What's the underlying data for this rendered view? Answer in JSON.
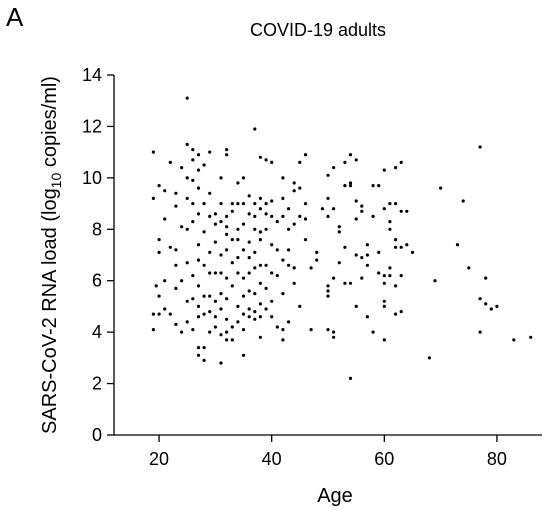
{
  "panel_label": "A",
  "chart_data": {
    "type": "scatter",
    "title": "COVID-19 adults",
    "xlabel": "Age",
    "ylabel_main": "SARS-CoV-2 RNA load (log",
    "ylabel_sub": "10",
    "ylabel_tail": " copies/ml)",
    "xlim": [
      12,
      88
    ],
    "ylim": [
      0,
      14
    ],
    "xticks": [
      20,
      40,
      60,
      80
    ],
    "yticks": [
      0,
      2,
      4,
      6,
      8,
      10,
      12,
      14
    ],
    "grid": false,
    "legend": "none",
    "marker_color": "#000000",
    "points": [
      [
        19,
        11.0
      ],
      [
        19,
        9.2
      ],
      [
        19,
        4.1
      ],
      [
        19,
        4.7
      ],
      [
        19.5,
        5.8
      ],
      [
        20,
        9.7
      ],
      [
        20,
        7.6
      ],
      [
        20,
        7.1
      ],
      [
        20,
        5.4
      ],
      [
        20,
        4.7
      ],
      [
        21,
        9.5
      ],
      [
        21,
        8.4
      ],
      [
        21,
        6.0
      ],
      [
        21,
        4.9
      ],
      [
        22,
        10.6
      ],
      [
        22,
        7.3
      ],
      [
        22,
        4.7
      ],
      [
        23,
        9.4
      ],
      [
        23,
        8.9
      ],
      [
        23,
        7.2
      ],
      [
        23,
        6.6
      ],
      [
        23,
        5.7
      ],
      [
        23,
        4.3
      ],
      [
        24,
        10.4
      ],
      [
        24,
        8.1
      ],
      [
        24,
        6.0
      ],
      [
        24,
        4.0
      ],
      [
        25,
        13.1
      ],
      [
        25,
        11.3
      ],
      [
        25,
        10.0
      ],
      [
        25,
        9.2
      ],
      [
        25,
        8.0
      ],
      [
        25,
        6.7
      ],
      [
        25,
        5.2
      ],
      [
        25,
        4.4
      ],
      [
        26,
        11.1
      ],
      [
        26,
        10.7
      ],
      [
        26,
        9.9
      ],
      [
        26,
        9.0
      ],
      [
        26,
        8.3
      ],
      [
        26,
        6.2
      ],
      [
        26,
        5.3
      ],
      [
        26,
        4.1
      ],
      [
        27,
        10.9
      ],
      [
        27,
        10.3
      ],
      [
        27,
        9.6
      ],
      [
        27,
        8.6
      ],
      [
        27,
        7.4
      ],
      [
        27,
        6.8
      ],
      [
        27,
        5.8
      ],
      [
        27,
        5.0
      ],
      [
        27,
        4.6
      ],
      [
        27,
        3.4
      ],
      [
        27,
        3.1
      ],
      [
        28,
        10.5
      ],
      [
        28,
        9.0
      ],
      [
        28,
        7.9
      ],
      [
        28,
        6.6
      ],
      [
        28,
        5.4
      ],
      [
        28,
        4.7
      ],
      [
        28,
        3.4
      ],
      [
        28,
        2.9
      ],
      [
        29,
        11.0
      ],
      [
        29,
        9.4
      ],
      [
        29,
        8.5
      ],
      [
        29,
        7.1
      ],
      [
        29,
        6.3
      ],
      [
        29,
        5.4
      ],
      [
        29,
        4.8
      ],
      [
        29,
        4.0
      ],
      [
        30,
        8.6
      ],
      [
        30,
        8.2
      ],
      [
        30,
        7.5
      ],
      [
        30,
        6.3
      ],
      [
        30,
        5.2
      ],
      [
        30,
        4.6
      ],
      [
        30,
        4.2
      ],
      [
        31,
        10.0
      ],
      [
        31,
        9.0
      ],
      [
        31,
        8.3
      ],
      [
        31,
        7.0
      ],
      [
        31,
        6.3
      ],
      [
        31,
        5.5
      ],
      [
        31,
        4.9
      ],
      [
        31,
        3.9
      ],
      [
        31,
        2.8
      ],
      [
        32,
        11.1
      ],
      [
        32,
        10.9
      ],
      [
        32,
        8.5
      ],
      [
        32,
        8.1
      ],
      [
        32,
        7.8
      ],
      [
        32,
        7.2
      ],
      [
        32,
        6.1
      ],
      [
        32,
        5.3
      ],
      [
        32,
        4.5
      ],
      [
        32,
        4.0
      ],
      [
        32,
        3.7
      ],
      [
        33,
        9.0
      ],
      [
        33,
        8.7
      ],
      [
        33,
        7.6
      ],
      [
        33,
        6.7
      ],
      [
        33,
        5.8
      ],
      [
        33,
        4.2
      ],
      [
        33,
        3.7
      ],
      [
        34,
        9.8
      ],
      [
        34,
        9.0
      ],
      [
        34,
        8.0
      ],
      [
        34,
        7.6
      ],
      [
        34,
        6.9
      ],
      [
        34,
        6.3
      ],
      [
        34,
        5.0
      ],
      [
        34,
        4.4
      ],
      [
        35,
        10.0
      ],
      [
        35,
        9.0
      ],
      [
        35,
        8.2
      ],
      [
        35,
        7.2
      ],
      [
        35,
        6.1
      ],
      [
        35,
        5.4
      ],
      [
        35,
        4.7
      ],
      [
        35,
        4.1
      ],
      [
        35,
        3.1
      ],
      [
        36,
        9.3
      ],
      [
        36,
        8.6
      ],
      [
        36,
        7.5
      ],
      [
        36,
        6.9
      ],
      [
        36,
        6.3
      ],
      [
        36,
        5.6
      ],
      [
        36,
        4.9
      ],
      [
        36,
        4.6
      ],
      [
        37,
        11.9
      ],
      [
        37,
        9.0
      ],
      [
        37,
        8.5
      ],
      [
        37,
        8.0
      ],
      [
        37,
        7.1
      ],
      [
        37,
        6.5
      ],
      [
        37,
        5.5
      ],
      [
        37,
        4.8
      ],
      [
        37,
        4.5
      ],
      [
        38,
        10.8
      ],
      [
        38,
        9.2
      ],
      [
        38,
        8.8
      ],
      [
        38,
        7.9
      ],
      [
        38,
        7.6
      ],
      [
        38,
        6.6
      ],
      [
        38,
        5.9
      ],
      [
        38,
        5.1
      ],
      [
        38,
        4.6
      ],
      [
        38,
        3.8
      ],
      [
        39,
        10.7
      ],
      [
        39,
        9.0
      ],
      [
        39,
        8.6
      ],
      [
        39,
        8.0
      ],
      [
        39,
        6.6
      ],
      [
        39,
        5.7
      ],
      [
        39,
        4.9
      ],
      [
        40,
        10.6
      ],
      [
        40,
        9.1
      ],
      [
        40,
        8.5
      ],
      [
        40,
        7.4
      ],
      [
        40,
        6.3
      ],
      [
        40,
        5.2
      ],
      [
        40,
        4.6
      ],
      [
        41,
        8.3
      ],
      [
        41,
        7.2
      ],
      [
        41,
        6.2
      ],
      [
        41,
        4.2
      ],
      [
        42,
        10.0
      ],
      [
        42,
        9.2
      ],
      [
        42,
        8.5
      ],
      [
        42,
        6.8
      ],
      [
        42,
        5.5
      ],
      [
        42,
        4.1
      ],
      [
        42,
        3.7
      ],
      [
        43,
        8.8
      ],
      [
        43,
        8.0
      ],
      [
        43,
        7.2
      ],
      [
        43,
        6.6
      ],
      [
        43,
        4.4
      ],
      [
        44,
        9.8
      ],
      [
        44,
        9.5
      ],
      [
        44,
        8.2
      ],
      [
        44,
        6.5
      ],
      [
        44,
        5.9
      ],
      [
        45,
        10.6
      ],
      [
        45,
        9.6
      ],
      [
        45,
        8.5
      ],
      [
        45,
        5.0
      ],
      [
        46,
        10.9
      ],
      [
        46,
        9.0
      ],
      [
        46,
        8.4
      ],
      [
        46,
        7.6
      ],
      [
        47,
        6.5
      ],
      [
        47,
        4.1
      ],
      [
        48,
        7.1
      ],
      [
        48,
        6.8
      ],
      [
        49,
        8.8
      ],
      [
        50,
        10.1
      ],
      [
        50,
        9.2
      ],
      [
        50,
        8.5
      ],
      [
        50,
        5.8
      ],
      [
        50,
        5.6
      ],
      [
        50,
        5.4
      ],
      [
        50,
        4.1
      ],
      [
        51,
        10.4
      ],
      [
        51,
        8.8
      ],
      [
        51,
        6.1
      ],
      [
        51,
        4.0
      ],
      [
        51,
        3.8
      ],
      [
        52,
        8.1
      ],
      [
        52,
        7.9
      ],
      [
        52,
        6.7
      ],
      [
        53,
        10.6
      ],
      [
        53,
        9.7
      ],
      [
        53,
        7.3
      ],
      [
        53,
        5.9
      ],
      [
        54,
        10.9
      ],
      [
        54,
        9.8
      ],
      [
        54,
        9.7
      ],
      [
        54,
        5.9
      ],
      [
        54,
        2.2
      ],
      [
        55,
        10.7
      ],
      [
        55,
        9.1
      ],
      [
        55,
        8.4
      ],
      [
        55,
        7.0
      ],
      [
        55,
        5.0
      ],
      [
        56,
        8.9
      ],
      [
        56,
        8.7
      ],
      [
        56,
        6.9
      ],
      [
        56,
        6.1
      ],
      [
        57,
        7.4
      ],
      [
        57,
        7.0
      ],
      [
        57,
        6.6
      ],
      [
        57,
        4.6
      ],
      [
        58,
        9.7
      ],
      [
        58,
        8.5
      ],
      [
        58,
        4.0
      ],
      [
        59,
        9.7
      ],
      [
        59,
        7.1
      ],
      [
        59,
        6.3
      ],
      [
        60,
        10.3
      ],
      [
        60,
        8.8
      ],
      [
        60,
        6.2
      ],
      [
        60,
        5.9
      ],
      [
        60,
        5.2
      ],
      [
        60,
        5.0
      ],
      [
        60,
        3.7
      ],
      [
        61,
        9.0
      ],
      [
        61,
        8.3
      ],
      [
        61,
        8.0
      ],
      [
        61,
        6.5
      ],
      [
        61,
        6.2
      ],
      [
        62,
        10.4
      ],
      [
        62,
        9.0
      ],
      [
        62,
        7.6
      ],
      [
        62,
        7.3
      ],
      [
        62,
        5.8
      ],
      [
        62,
        4.7
      ],
      [
        63,
        10.6
      ],
      [
        63,
        8.7
      ],
      [
        63,
        7.3
      ],
      [
        63,
        6.2
      ],
      [
        63,
        4.8
      ],
      [
        64,
        8.7
      ],
      [
        64,
        7.4
      ],
      [
        65,
        7.1
      ],
      [
        68,
        3.0
      ],
      [
        69,
        6.0
      ],
      [
        70,
        9.6
      ],
      [
        73,
        7.4
      ],
      [
        74,
        9.1
      ],
      [
        75,
        6.5
      ],
      [
        77,
        11.2
      ],
      [
        77,
        5.3
      ],
      [
        77,
        4.0
      ],
      [
        78,
        6.1
      ],
      [
        78,
        5.1
      ],
      [
        79,
        4.9
      ],
      [
        80,
        5.0
      ],
      [
        83,
        3.7
      ],
      [
        86,
        3.8
      ]
    ]
  }
}
